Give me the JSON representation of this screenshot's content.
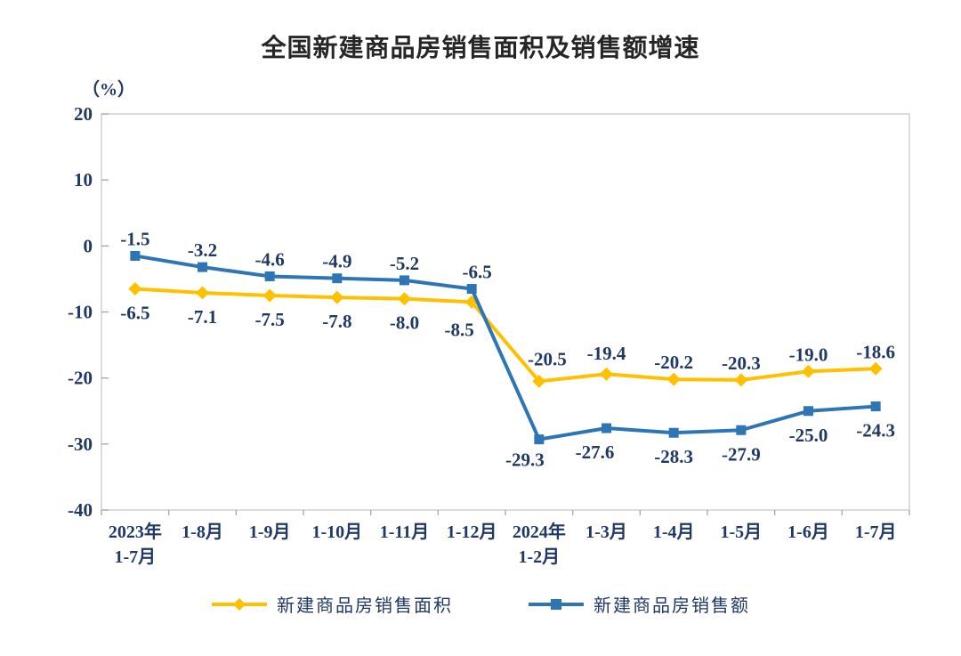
{
  "title": "全国新建商品房销售面积及销售额增速",
  "y_axis_unit": "（%）",
  "chart_data": {
    "type": "line",
    "title": "全国新建商品房销售面积及销售额增速",
    "xlabel": "",
    "ylabel": "（%）",
    "ylim": [
      -40,
      20
    ],
    "ytick_interval": 10,
    "yticks": [
      20,
      10,
      0,
      -10,
      -20,
      -30,
      -40
    ],
    "grid": false,
    "legend_position": "bottom",
    "categories": [
      "2023年\n1-7月",
      "1-8月",
      "1-9月",
      "1-10月",
      "1-11月",
      "1-12月",
      "2024年\n1-2月",
      "1-3月",
      "1-4月",
      "1-5月",
      "1-6月",
      "1-7月"
    ],
    "series": [
      {
        "name": "新建商品房销售面积",
        "color": "#FFC000",
        "marker": "diamond",
        "values": [
          -6.5,
          -7.1,
          -7.5,
          -7.8,
          -8.0,
          -8.5,
          -20.5,
          -19.4,
          -20.2,
          -20.3,
          -19.0,
          -18.6
        ],
        "label_side": [
          "below",
          "below",
          "below",
          "below",
          "below",
          "below",
          "above",
          "above",
          "above",
          "above",
          "above",
          "above"
        ]
      },
      {
        "name": "新建商品房销售额",
        "color": "#2E75B6",
        "marker": "square",
        "values": [
          -1.5,
          -3.2,
          -4.6,
          -4.9,
          -5.2,
          -6.5,
          -29.3,
          -27.6,
          -28.3,
          -27.9,
          -25.0,
          -24.3
        ],
        "label_side": [
          "above",
          "above",
          "above",
          "above",
          "above",
          "above",
          "below",
          "below",
          "below",
          "below",
          "below",
          "below"
        ]
      }
    ]
  }
}
